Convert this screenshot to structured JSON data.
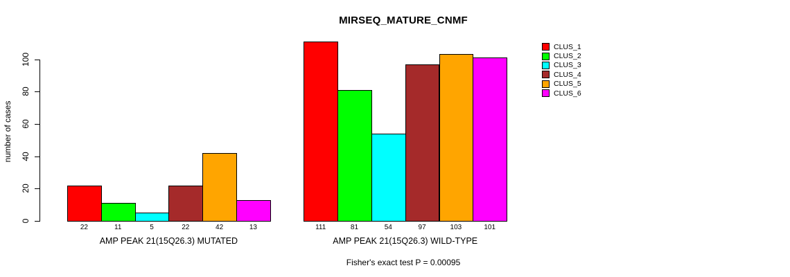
{
  "chart_data": {
    "type": "bar",
    "title": "MIRSEQ_MATURE_CNMF",
    "ylabel": "number of cases",
    "yticks": [
      0,
      20,
      40,
      60,
      80,
      100
    ],
    "ylim": [
      0,
      112
    ],
    "grid": false,
    "legend_position": "right",
    "clusters": [
      {
        "label": "CLUS_1",
        "color": "#ff0000"
      },
      {
        "label": "CLUS_2",
        "color": "#00ff00"
      },
      {
        "label": "CLUS_3",
        "color": "#00ffff"
      },
      {
        "label": "CLUS_4",
        "color": "#a52a2a"
      },
      {
        "label": "CLUS_5",
        "color": "#ffa500"
      },
      {
        "label": "CLUS_6",
        "color": "#ff00ff"
      }
    ],
    "groups": [
      {
        "label": "AMP PEAK 21(15Q26.3) MUTATED",
        "values": [
          22,
          11,
          5,
          22,
          42,
          13
        ]
      },
      {
        "label": "AMP PEAK 21(15Q26.3) WILD-TYPE",
        "values": [
          111,
          81,
          54,
          97,
          103,
          101
        ]
      }
    ],
    "annotation": "Fisher's exact test P = 0.00095"
  }
}
